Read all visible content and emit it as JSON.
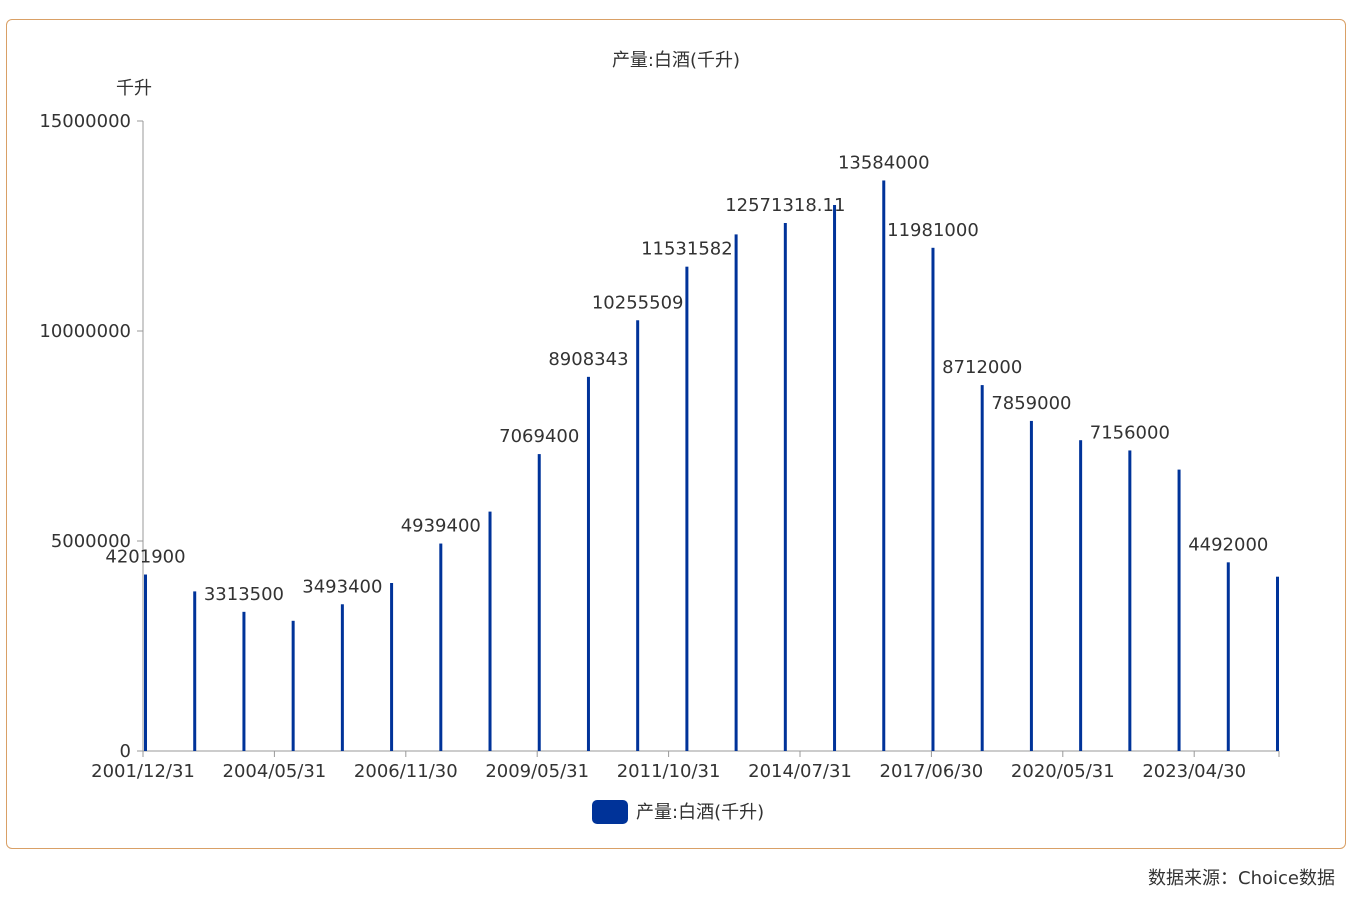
{
  "chart_data": {
    "type": "bar",
    "title": "产量:白酒(千升)",
    "ylabel": "千升",
    "ylim": [
      0,
      15000000
    ],
    "yticks": [
      "0",
      "5000000",
      "10000000",
      "15000000"
    ],
    "x_tick_labels": [
      "2001/12/31",
      "2004/05/31",
      "2006/11/30",
      "2009/05/31",
      "2011/10/31",
      "2014/07/31",
      "2017/06/30",
      "2020/05/31",
      "2023/04/30"
    ],
    "series": [
      {
        "name": "产量:白酒(千升)",
        "color": "#003399",
        "values": [
          4201900,
          3800000,
          3313500,
          3100000,
          3493400,
          4000000,
          4939400,
          5700000,
          7069400,
          8908343,
          10255509,
          11531582,
          12300000,
          12571318.11,
          13000000,
          13584000,
          11981000,
          8712000,
          7859000,
          7400000,
          7156000,
          6700000,
          4492000,
          4150000
        ],
        "labels": [
          "4201900",
          "",
          "3313500",
          "",
          "3493400",
          "",
          "4939400",
          "",
          "7069400",
          "8908343",
          "10255509",
          "11531582",
          "",
          "12571318.11",
          "",
          "13584000",
          "11981000",
          "8712000",
          "7859000",
          "",
          "7156000",
          "",
          "4492000",
          ""
        ]
      }
    ],
    "legend": {
      "label": "产量:白酒(千升)",
      "position": "bottom-center"
    },
    "grid": false
  },
  "footer": {
    "source": "数据来源：Choice数据"
  }
}
